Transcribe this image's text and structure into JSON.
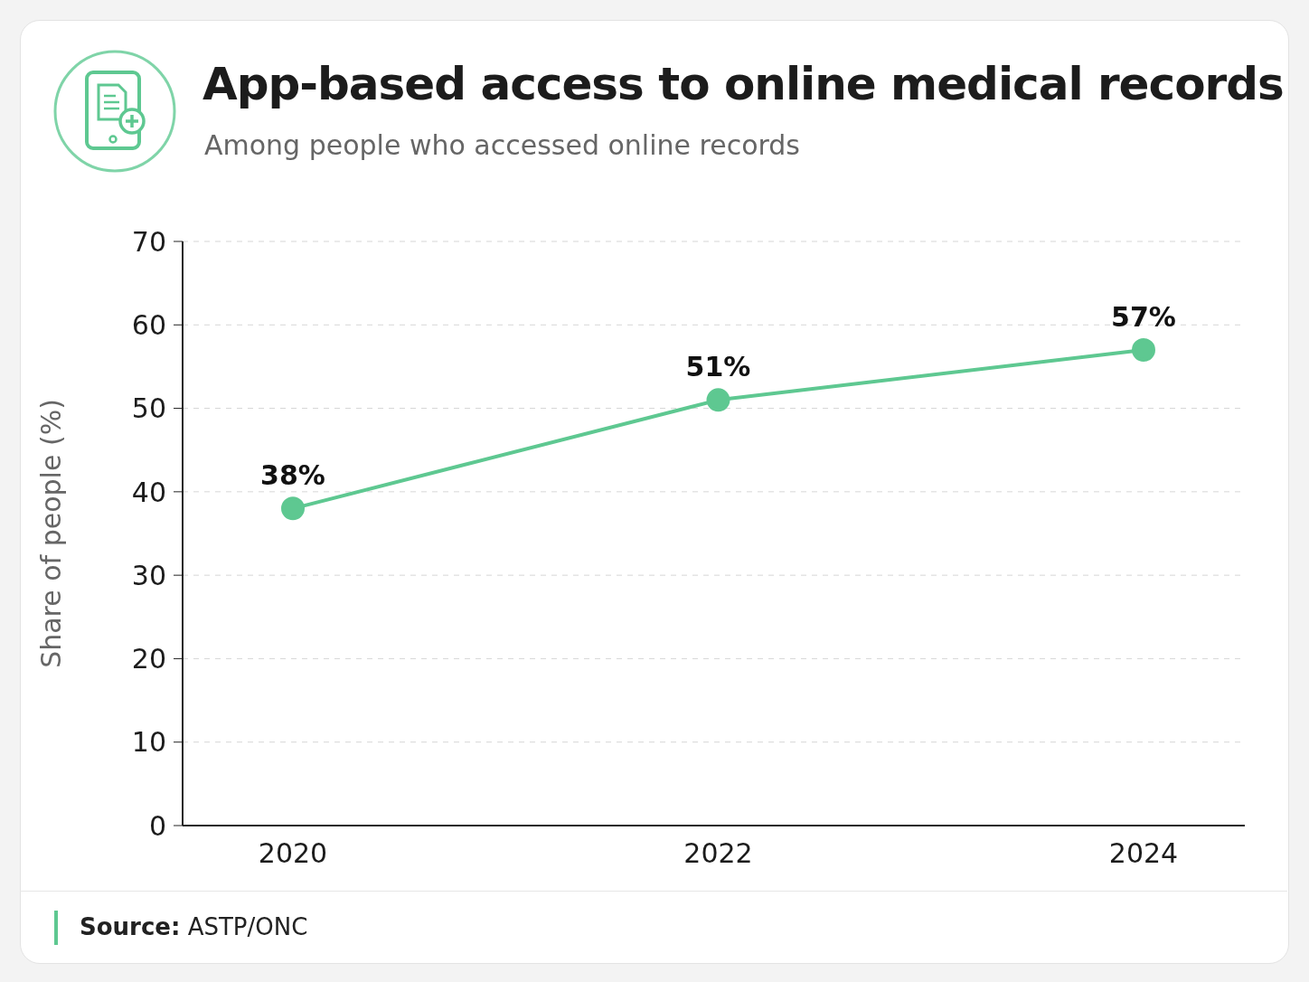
{
  "chart_data": {
    "type": "line",
    "title": "App-based access to online medical records",
    "subtitle": "Among people who accessed online records",
    "ylabel": "Share of people (%)",
    "categories": [
      "2020",
      "2022",
      "2024"
    ],
    "series": [
      {
        "color": "#5ec891",
        "values": [
          38,
          51,
          57
        ],
        "value_labels": [
          "38%",
          "51%",
          "57%"
        ]
      }
    ],
    "ylim": [
      0,
      70
    ],
    "yticks": [
      0,
      10,
      20,
      30,
      40,
      50,
      60,
      70
    ],
    "grid": "y",
    "legend": false,
    "marker": "circle",
    "line_style": "solid",
    "annotations": [
      "Source: ASTP/ONC"
    ]
  }
}
